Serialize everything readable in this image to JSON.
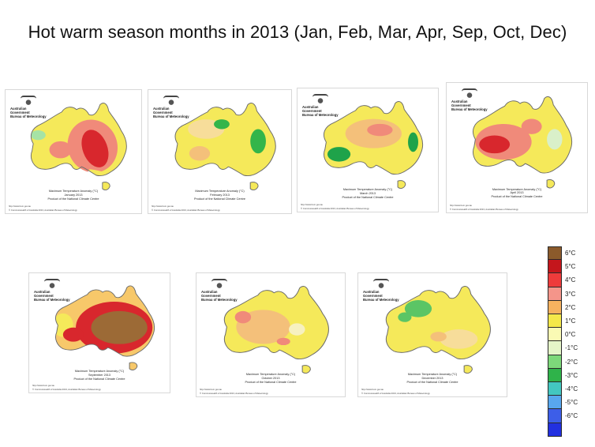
{
  "slide": {
    "title": "Hot warm season months in 2013 (Jan, Feb, Mar, Apr, Sep, Oct, Dec)"
  },
  "maps": [
    {
      "month": "January 2013",
      "map_title": "Maximum Temperature Anomaly (°C)",
      "product": "Product of the National Climate Centre",
      "base_color": "#f5e95a",
      "hot_core": "#d8272d",
      "hot_mid": "#f08a7a",
      "cool": "#a6e3a5"
    },
    {
      "month": "February 2013",
      "map_title": "Maximum Temperature Anomaly (°C)",
      "product": "Product of the National Climate Centre",
      "base_color": "#f5e95a",
      "hot_core": "#f4c07a",
      "hot_mid": "#f7dd9a",
      "cool": "#33b54a"
    },
    {
      "month": "March 2013",
      "map_title": "Maximum Temperature Anomaly (°C)",
      "product": "Product of the National Climate Centre",
      "base_color": "#f5e95a",
      "hot_core": "#f08a7a",
      "hot_mid": "#f4c07a",
      "cool": "#1fa34a"
    },
    {
      "month": "April 2013",
      "map_title": "Maximum Temperature Anomaly (°C)",
      "product": "Product of the National Climate Centre",
      "base_color": "#f5e95a",
      "hot_core": "#d8272d",
      "hot_mid": "#f08a7a",
      "cool": "#d9f0c9"
    },
    {
      "month": "September 2013",
      "map_title": "Maximum Temperature Anomaly (°C)",
      "product": "Product of the National Climate Centre",
      "base_color": "#f7c86a",
      "hot_core": "#9c6a36",
      "hot_mid": "#d8272d",
      "cool": "#f5e95a"
    },
    {
      "month": "October 2013",
      "map_title": "Maximum Temperature Anomaly (°C)",
      "product": "Product of the National Climate Centre",
      "base_color": "#f5e95a",
      "hot_core": "#f08a7a",
      "hot_mid": "#f4c07a",
      "cool": "#f7f1c0"
    },
    {
      "month": "December 2013",
      "map_title": "Maximum Temperature Anomaly (°C)",
      "product": "Product of the National Climate Centre",
      "base_color": "#f5e95a",
      "hot_core": "#f4c07a",
      "hot_mid": "#f7dd9a",
      "cool": "#5bc565"
    }
  ],
  "map_header": {
    "gov": "Australian Government",
    "bureau": "Bureau of Meteorology",
    "url": "http://www.bom.gov.au",
    "footer": "© Commonwealth of Australia 2013, Australian Bureau of Meteorology"
  },
  "legend": {
    "items": [
      {
        "label": "6°C",
        "color": "#8b5a2b"
      },
      {
        "label": "5°C",
        "color": "#c4161c"
      },
      {
        "label": "4°C",
        "color": "#ee3b3b"
      },
      {
        "label": "3°C",
        "color": "#f4958a"
      },
      {
        "label": "2°C",
        "color": "#f6b25f"
      },
      {
        "label": "1°C",
        "color": "#f5e84a"
      },
      {
        "label": "0°C",
        "color": "#fafab4"
      },
      {
        "label": "-1°C",
        "color": "#e5f5c8"
      },
      {
        "label": "-2°C",
        "color": "#7dd87a"
      },
      {
        "label": "-3°C",
        "color": "#2fb34a"
      },
      {
        "label": "-4°C",
        "color": "#43c7c0"
      },
      {
        "label": "-5°C",
        "color": "#58a7ee"
      },
      {
        "label": "-6°C",
        "color": "#3d5ee8"
      },
      {
        "label": "",
        "color": "#2230e0"
      }
    ]
  }
}
